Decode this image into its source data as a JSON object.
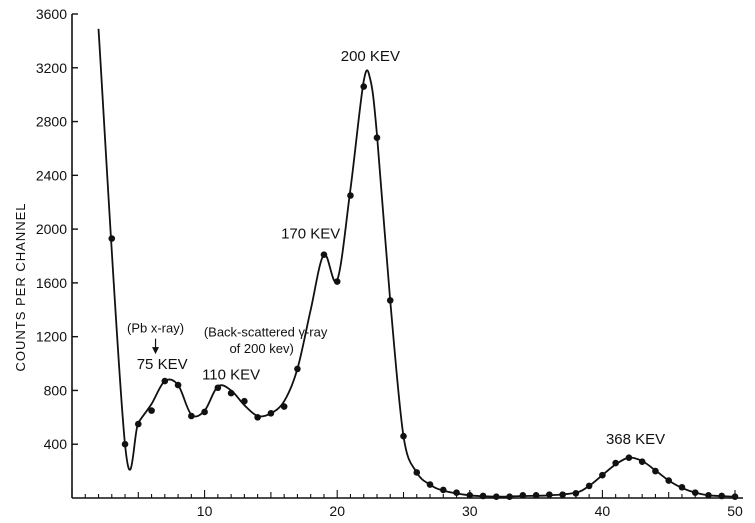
{
  "chart_data": {
    "type": "line",
    "title": "",
    "xlabel": "",
    "ylabel": "COUNTS PER CHANNEL",
    "xlim": [
      0,
      50
    ],
    "ylim": [
      0,
      3600
    ],
    "grid": false,
    "x_ticks": [
      10,
      20,
      30,
      40,
      50
    ],
    "x_tick_labels": [
      "10",
      "20",
      "30",
      "40",
      "50"
    ],
    "y_ticks": [
      400,
      800,
      1200,
      1600,
      2000,
      2400,
      2800,
      3200,
      3600
    ],
    "y_tick_labels": [
      "400",
      "800",
      "1200",
      "1600",
      "2000",
      "2400",
      "2800",
      "3200",
      "3600"
    ],
    "series": [
      {
        "points": [
          [
            3,
            1930
          ],
          [
            4,
            400
          ],
          [
            5,
            550
          ],
          [
            6,
            650
          ],
          [
            7,
            870
          ],
          [
            8,
            840
          ],
          [
            9,
            610
          ],
          [
            10,
            640
          ],
          [
            11,
            820
          ],
          [
            12,
            780
          ],
          [
            13,
            720
          ],
          [
            14,
            600
          ],
          [
            15,
            630
          ],
          [
            16,
            680
          ],
          [
            17,
            960
          ],
          [
            19,
            1810
          ],
          [
            20,
            1610
          ],
          [
            21,
            2250
          ],
          [
            22,
            3060
          ],
          [
            23,
            2680
          ],
          [
            24,
            1470
          ],
          [
            25,
            460
          ],
          [
            26,
            190
          ],
          [
            27,
            100
          ],
          [
            28,
            60
          ],
          [
            29,
            40
          ],
          [
            30,
            20
          ],
          [
            31,
            15
          ],
          [
            32,
            10
          ],
          [
            33,
            10
          ],
          [
            34,
            20
          ],
          [
            35,
            20
          ],
          [
            36,
            25
          ],
          [
            37,
            25
          ],
          [
            38,
            35
          ],
          [
            39,
            90
          ],
          [
            40,
            170
          ],
          [
            41,
            260
          ],
          [
            42,
            300
          ],
          [
            43,
            270
          ],
          [
            44,
            200
          ],
          [
            45,
            130
          ],
          [
            46,
            80
          ],
          [
            47,
            40
          ],
          [
            48,
            20
          ],
          [
            49,
            15
          ],
          [
            50,
            10
          ]
        ],
        "curve": [
          [
            2,
            3490
          ],
          [
            4,
            400
          ],
          [
            5,
            560
          ],
          [
            6,
            700
          ],
          [
            7,
            870
          ],
          [
            8,
            840
          ],
          [
            9,
            620
          ],
          [
            10,
            650
          ],
          [
            11,
            830
          ],
          [
            12,
            800
          ],
          [
            13,
            690
          ],
          [
            14,
            610
          ],
          [
            15,
            630
          ],
          [
            16,
            720
          ],
          [
            17,
            960
          ],
          [
            18,
            1400
          ],
          [
            19,
            1810
          ],
          [
            20,
            1620
          ],
          [
            21,
            2300
          ],
          [
            22,
            3100
          ],
          [
            22.5,
            3110
          ],
          [
            23,
            2700
          ],
          [
            24,
            1470
          ],
          [
            25,
            460
          ],
          [
            26,
            190
          ],
          [
            27,
            100
          ],
          [
            28,
            55
          ],
          [
            30,
            20
          ],
          [
            32,
            10
          ],
          [
            34,
            15
          ],
          [
            36,
            20
          ],
          [
            38,
            40
          ],
          [
            39,
            90
          ],
          [
            40,
            170
          ],
          [
            41,
            250
          ],
          [
            42,
            300
          ],
          [
            43,
            275
          ],
          [
            44,
            205
          ],
          [
            45,
            130
          ],
          [
            46,
            75
          ],
          [
            47,
            40
          ],
          [
            48,
            20
          ],
          [
            50,
            10
          ]
        ]
      }
    ],
    "annotations": [
      {
        "text": "200 KEV",
        "x": 22.5,
        "y": 3250
      },
      {
        "text": "170 KEV",
        "x": 18,
        "y": 1930
      },
      {
        "text": "75 KEV",
        "x": 6.8,
        "y": 960
      },
      {
        "text": "110 KEV",
        "x": 12,
        "y": 880
      },
      {
        "text": "368 KEV",
        "x": 42.5,
        "y": 400
      },
      {
        "text": "(Pb x-ray)",
        "x": 6.3,
        "y": 1230
      },
      {
        "text": "(Back-scattered γ-ray",
        "x": 14.6,
        "y": 1200
      },
      {
        "text": "of 200 kev)",
        "x": 14.3,
        "y": 1080
      }
    ]
  }
}
